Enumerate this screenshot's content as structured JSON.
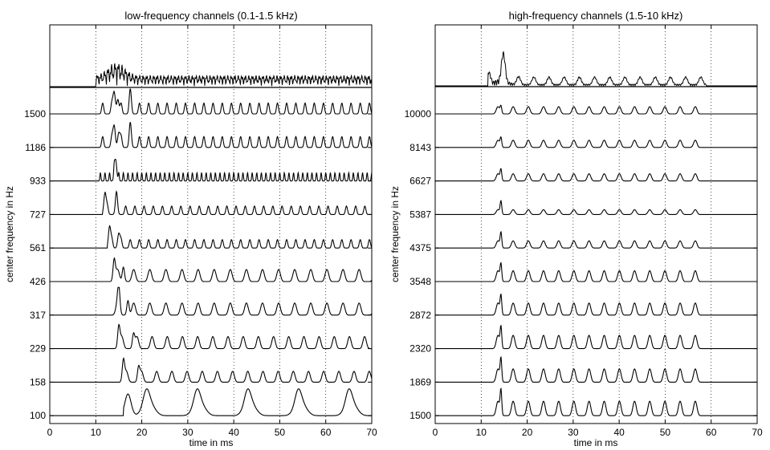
{
  "chart_data": [
    {
      "type": "line",
      "panel": "left",
      "title": "low-frequency channels (0.1-1.5 kHz)",
      "xlabel": "time in ms",
      "ylabel": "center frequency in Hz",
      "xlim": [
        0,
        70
      ],
      "x_ticks": [
        "0",
        "10",
        "20",
        "30",
        "40",
        "50",
        "60",
        "70"
      ],
      "grid": "vertical dotted at x ticks",
      "summary_trace": {
        "onset_ms": 10,
        "offset_ms": 70,
        "peak_ms": 14.5
      },
      "channels": [
        {
          "label": "1500",
          "period_ms": 2.0,
          "onset_ms": 10.5,
          "amp": 0.45,
          "first_peaks_ms": [
            14,
            14.8,
            17.5
          ]
        },
        {
          "label": "1186",
          "period_ms": 2.0,
          "onset_ms": 10.5,
          "amp": 0.45,
          "first_peaks_ms": [
            14,
            15,
            17.5
          ]
        },
        {
          "label": "933",
          "period_ms": 1.0,
          "onset_ms": 10.5,
          "amp": 0.35,
          "first_peaks_ms": [
            14.3
          ]
        },
        {
          "label": "727",
          "period_ms": 2.0,
          "onset_ms": 11.5,
          "amp": 0.35,
          "first_peaks_ms": [
            12,
            14.5
          ]
        },
        {
          "label": "561",
          "period_ms": 2.0,
          "onset_ms": 12.5,
          "amp": 0.35,
          "first_peaks_ms": [
            13,
            15
          ]
        },
        {
          "label": "426",
          "period_ms": 3.5,
          "onset_ms": 13,
          "amp": 0.5,
          "first_peaks_ms": [
            14,
            16
          ]
        },
        {
          "label": "317",
          "period_ms": 3.5,
          "onset_ms": 13,
          "amp": 0.5,
          "first_peaks_ms": [
            15,
            17
          ]
        },
        {
          "label": "229",
          "period_ms": 3.3,
          "onset_ms": 14,
          "amp": 0.5,
          "first_peaks_ms": [
            15,
            18.2
          ]
        },
        {
          "label": "158",
          "period_ms": 3.3,
          "onset_ms": 15,
          "amp": 0.45,
          "first_peaks_ms": [
            16,
            19.3
          ]
        },
        {
          "label": "100",
          "period_ms": 11.0,
          "onset_ms": 16,
          "amp": 0.55,
          "first_peaks_ms": [
            17,
            21,
            32,
            43,
            54,
            65
          ]
        }
      ]
    },
    {
      "type": "line",
      "panel": "right",
      "title": "high-frequency channels (1.5-10 kHz)",
      "xlabel": "time in ms",
      "ylabel": "center frequency in Hz",
      "xlim": [
        0,
        70
      ],
      "x_ticks": [
        "0",
        "10",
        "20",
        "30",
        "40",
        "50",
        "60",
        "70"
      ],
      "grid": "vertical dotted at x ticks",
      "summary_trace": {
        "onset_ms": 11.5,
        "offset_ms": 59,
        "peak_ms": 14.2
      },
      "channels": [
        {
          "label": "10000",
          "period_ms": 3.3,
          "onset_ms": 12,
          "offset_ms": 57,
          "amp": 0.3
        },
        {
          "label": "8143",
          "period_ms": 3.3,
          "onset_ms": 12,
          "offset_ms": 57,
          "amp": 0.3
        },
        {
          "label": "6627",
          "period_ms": 3.3,
          "onset_ms": 12,
          "offset_ms": 57,
          "amp": 0.3
        },
        {
          "label": "5387",
          "period_ms": 3.3,
          "onset_ms": 12,
          "offset_ms": 57,
          "amp": 0.2
        },
        {
          "label": "4375",
          "period_ms": 3.3,
          "onset_ms": 12,
          "offset_ms": 57,
          "amp": 0.3
        },
        {
          "label": "3548",
          "period_ms": 3.3,
          "onset_ms": 12,
          "offset_ms": 58,
          "amp": 0.45
        },
        {
          "label": "2872",
          "period_ms": 3.3,
          "onset_ms": 12,
          "offset_ms": 58,
          "amp": 0.5
        },
        {
          "label": "2320",
          "period_ms": 3.3,
          "onset_ms": 12,
          "offset_ms": 58,
          "amp": 0.55
        },
        {
          "label": "1869",
          "period_ms": 3.3,
          "onset_ms": 12,
          "offset_ms": 58,
          "amp": 0.55
        },
        {
          "label": "1500",
          "period_ms": 3.3,
          "onset_ms": 12,
          "offset_ms": 58,
          "amp": 0.6
        }
      ]
    }
  ]
}
